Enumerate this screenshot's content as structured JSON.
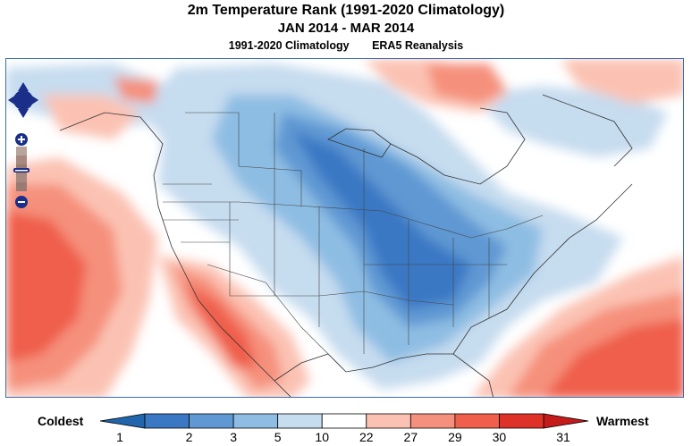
{
  "header": {
    "title": "2m Temperature Rank (1991-2020 Climatology)",
    "subtitle": "JAN 2014 - MAR 2014",
    "climatology": "1991-2020 Climatology",
    "dataset": "ERA5 Reanalysis"
  },
  "controls": {
    "pan": "pan-arrows",
    "zoom_in": "+",
    "zoom_out": "−"
  },
  "legend": {
    "coldest_label": "Coldest",
    "warmest_label": "Warmest",
    "ticks": [
      "1",
      "2",
      "3",
      "5",
      "10",
      "22",
      "27",
      "29",
      "30",
      "31"
    ],
    "colors": [
      "#3b78c4",
      "#5f98d3",
      "#8ebde3",
      "#c6dcef",
      "#ffffff",
      "#fbc2b3",
      "#f5907c",
      "#ef5f4b",
      "#de3228"
    ],
    "end_cold": "#2166ac",
    "end_warm": "#c51b1b"
  }
}
